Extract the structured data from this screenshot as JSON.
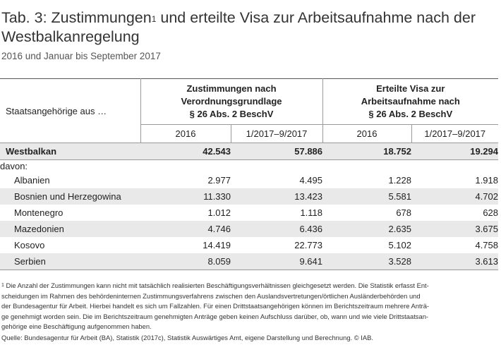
{
  "title": {
    "main": "Tab. 3: Zustimmungen",
    "sup": "1",
    "rest": " und erteilte Visa zur Arbeitsaufnahme nach der Westbalkanregelung"
  },
  "subtitle": "2016 und Januar bis September 2017",
  "table": {
    "row_header": "Staatsangehörige aus …",
    "group1": [
      "Zustimmungen nach",
      "Verordnungsgrundlage",
      "§ 26 Abs. 2 BeschV"
    ],
    "group2": [
      "Erteilte Visa zur",
      "Arbeitsaufnahme nach",
      "§ 26 Abs. 2 BeschV"
    ],
    "years": [
      "2016",
      "1/2017–9/2017",
      "2016",
      "1/2017–9/2017"
    ],
    "total": {
      "label": "Westbalkan",
      "values": [
        "42.543",
        "57.886",
        "18.752",
        "19.294"
      ]
    },
    "davon": "davon:",
    "rows": [
      {
        "label": "Albanien",
        "values": [
          "2.977",
          "4.495",
          "1.228",
          "1.918"
        ]
      },
      {
        "label": "Bosnien und Herzegowina",
        "values": [
          "11.330",
          "13.423",
          "5.581",
          "4.702"
        ]
      },
      {
        "label": "Montenegro",
        "values": [
          "1.012",
          "1.118",
          "678",
          "628"
        ]
      },
      {
        "label": "Mazedonien",
        "values": [
          "4.746",
          "6.436",
          "2.635",
          "3.675"
        ]
      },
      {
        "label": "Kosovo",
        "values": [
          "14.419",
          "22.773",
          "5.102",
          "4.758"
        ]
      },
      {
        "label": "Serbien",
        "values": [
          "8.059",
          "9.641",
          "3.528",
          "3.613"
        ]
      }
    ]
  },
  "footnote": {
    "marker": "1",
    "lines": [
      " Die Anzahl der Zustimmungen kann nicht mit tatsächlich realisierten Beschäftigungsverhältnissen gleichgesetzt werden. Die Statistik erfasst Ent-",
      "scheidungen im Rahmen des behördeninternen Zustimmungsverfahrens zwischen den Auslandsvertretungen/örtlichen Ausländerbehörden und",
      "der Bundesagentur für Arbeit. Hierbei handelt es sich um Fallzahlen. Für einen Drittstaatsangehörigen können im Berichtszeitraum mehrere Anträ-",
      "ge genehmigt worden sein. Die im Berichtszeitraum genehmigten Anträge geben keinen Aufschluss darüber, ob, wann und wie viele Drittstaatsan-",
      "gehörige eine Beschäftigung aufgenommen haben."
    ]
  },
  "source": "Quelle: Bundesagentur für Arbeit (BA), Statistik (2017c), Statistik Auswärtiges Amt, eigene Darstellung und Berechnung. © IAB."
}
